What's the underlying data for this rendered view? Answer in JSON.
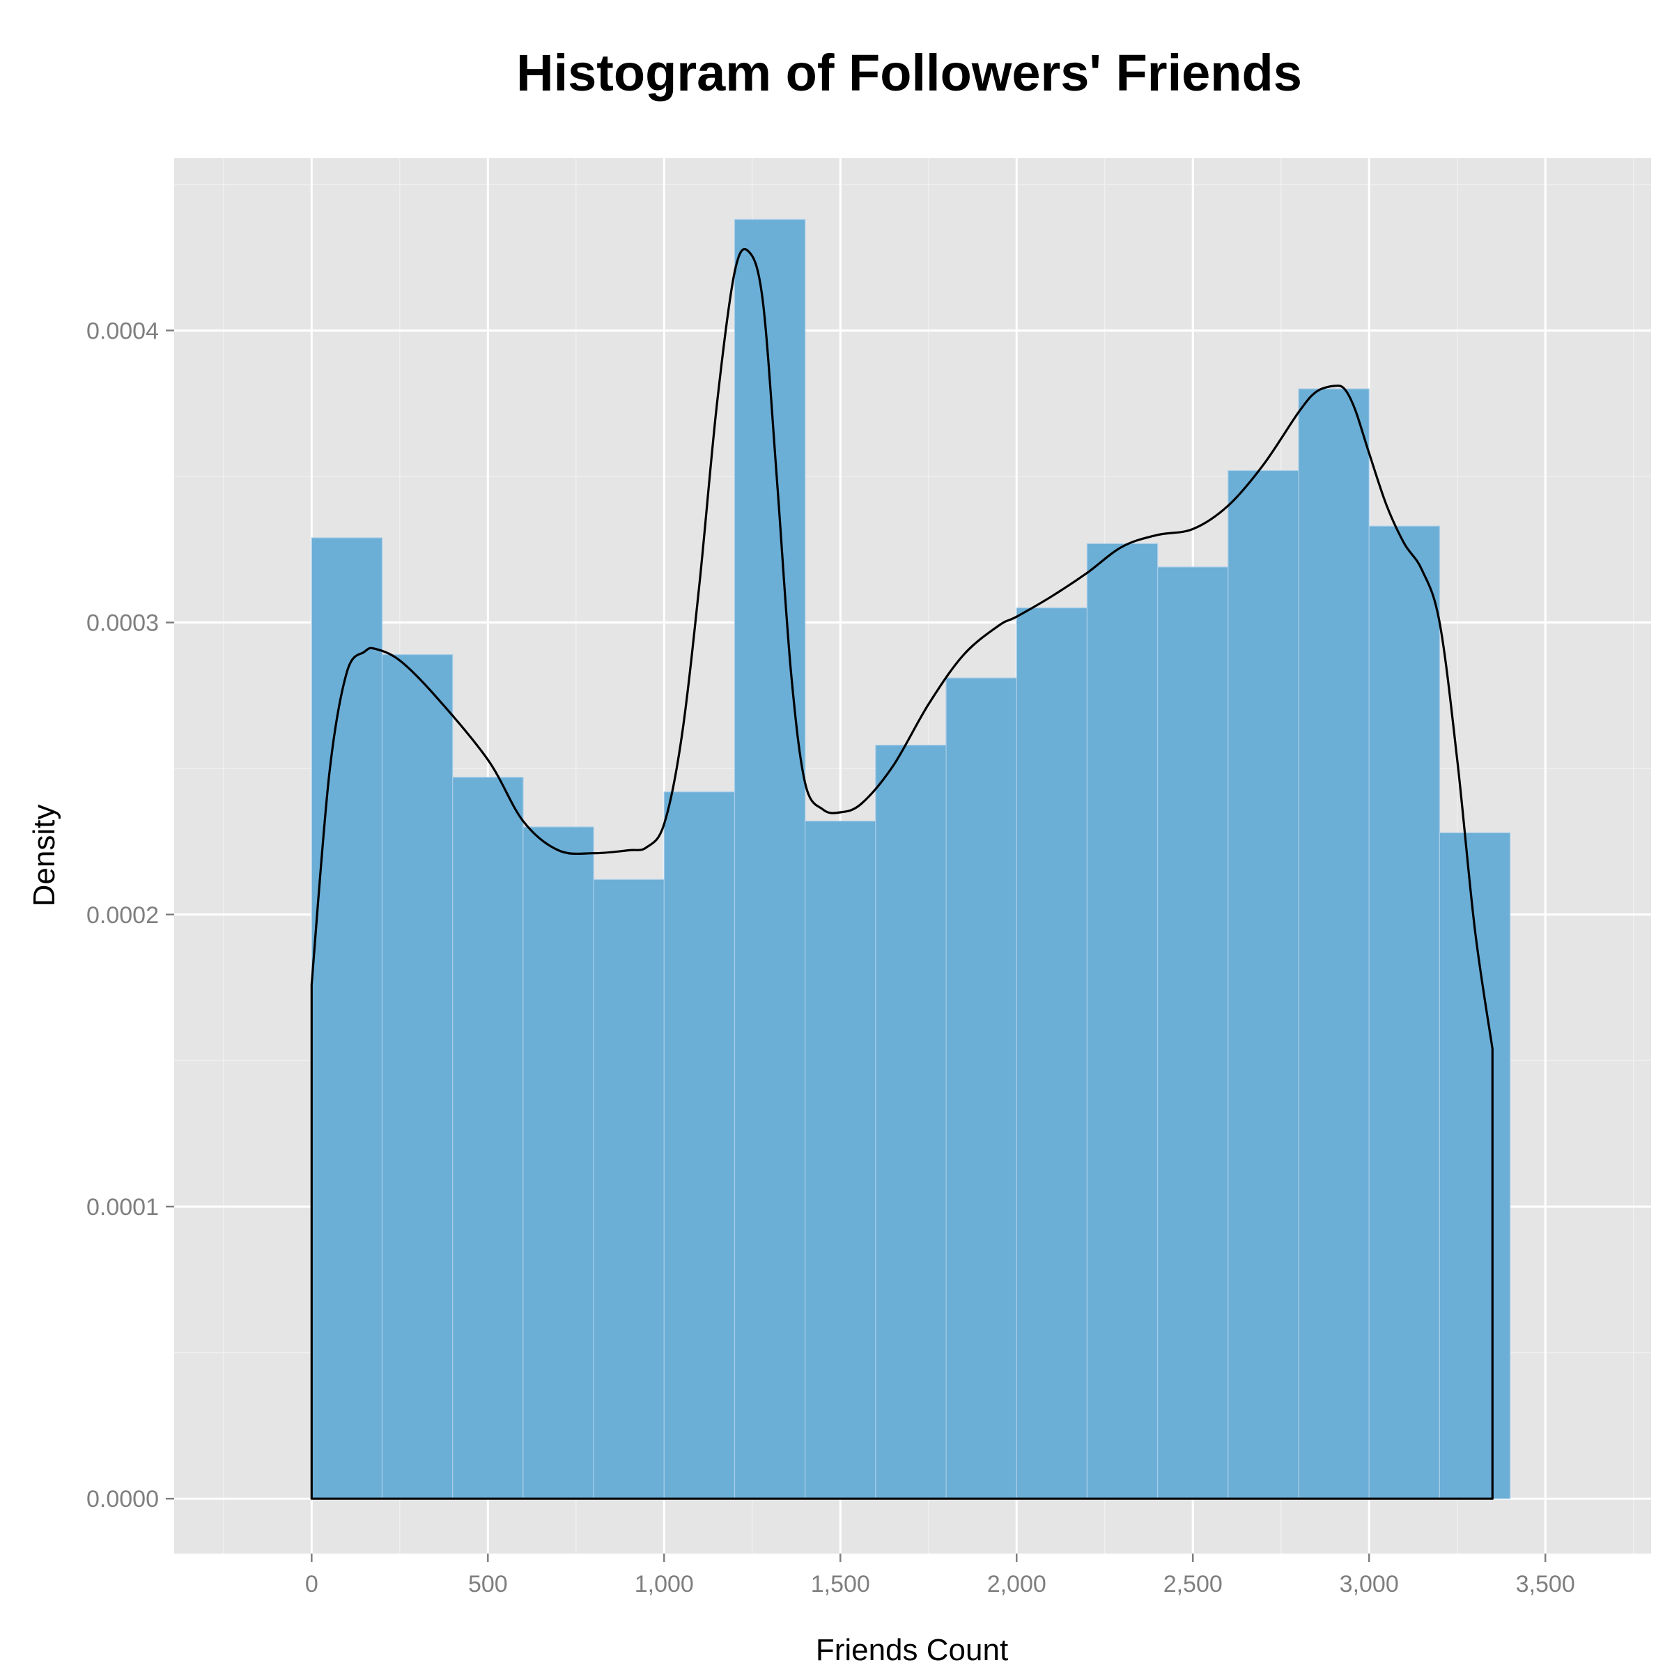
{
  "chart_data": {
    "type": "bar",
    "title": "Histogram of Followers' Friends",
    "xlabel": "Friends Count",
    "ylabel": "Density",
    "xlim": [
      -390,
      3800
    ],
    "ylim": [
      -1.88e-05,
      0.000459
    ],
    "grid": true,
    "x_ticks": [
      0,
      500,
      1000,
      1500,
      2000,
      2500,
      3000,
      3500
    ],
    "x_tick_labels": [
      "0",
      "500",
      "1,000",
      "1,500",
      "2,000",
      "2,500",
      "3,000",
      "3,500"
    ],
    "y_ticks": [
      0,
      0.0001,
      0.0002,
      0.0003,
      0.0004
    ],
    "y_tick_labels": [
      "0.0000",
      "0.0001",
      "0.0002",
      "0.0003",
      "0.0004"
    ],
    "bin_width": 200,
    "bins": [
      {
        "x0": 0,
        "x1": 200,
        "density": 0.000329
      },
      {
        "x0": 200,
        "x1": 400,
        "density": 0.000289
      },
      {
        "x0": 400,
        "x1": 600,
        "density": 0.000247
      },
      {
        "x0": 600,
        "x1": 800,
        "density": 0.00023
      },
      {
        "x0": 800,
        "x1": 1000,
        "density": 0.000212
      },
      {
        "x0": 1000,
        "x1": 1200,
        "density": 0.000242
      },
      {
        "x0": 1200,
        "x1": 1400,
        "density": 0.000438
      },
      {
        "x0": 1400,
        "x1": 1600,
        "density": 0.000232
      },
      {
        "x0": 1600,
        "x1": 1800,
        "density": 0.000258
      },
      {
        "x0": 1800,
        "x1": 2000,
        "density": 0.000281
      },
      {
        "x0": 2000,
        "x1": 2200,
        "density": 0.000305
      },
      {
        "x0": 2200,
        "x1": 2400,
        "density": 0.000327
      },
      {
        "x0": 2400,
        "x1": 2600,
        "density": 0.000319
      },
      {
        "x0": 2600,
        "x1": 2800,
        "density": 0.000352
      },
      {
        "x0": 2800,
        "x1": 3000,
        "density": 0.00038
      },
      {
        "x0": 3000,
        "x1": 3200,
        "density": 0.000333
      },
      {
        "x0": 3200,
        "x1": 3400,
        "density": 0.000228
      }
    ],
    "density_curve": {
      "x": [
        0,
        50,
        100,
        150,
        180,
        250,
        350,
        500,
        600,
        700,
        800,
        900,
        950,
        1000,
        1050,
        1100,
        1150,
        1200,
        1240,
        1280,
        1320,
        1360,
        1400,
        1450,
        1500,
        1560,
        1650,
        1750,
        1850,
        1950,
        2000,
        2100,
        2200,
        2300,
        2400,
        2500,
        2600,
        2700,
        2800,
        2850,
        2900,
        2930,
        2960,
        3000,
        3050,
        3100,
        3150,
        3200,
        3250,
        3300,
        3350
      ],
      "y": [
        0.000176,
        0.000248,
        0.000283,
        0.00029,
        0.000291,
        0.000287,
        0.000275,
        0.000253,
        0.000232,
        0.000222,
        0.000221,
        0.000222,
        0.000223,
        0.000231,
        0.000261,
        0.000313,
        0.000375,
        0.00042,
        0.000427,
        0.00041,
        0.000349,
        0.000283,
        0.000245,
        0.000236,
        0.000235,
        0.000238,
        0.000251,
        0.000272,
        0.000289,
        0.000299,
        0.000302,
        0.000309,
        0.000317,
        0.000326,
        0.00033,
        0.000332,
        0.00034,
        0.000354,
        0.000372,
        0.000379,
        0.000381,
        0.00038,
        0.000373,
        0.000358,
        0.00034,
        0.000327,
        0.000318,
        0.0003,
        0.000253,
        0.000195,
        0.000154
      ]
    },
    "colors": {
      "panel_bg": "#e5e5e5",
      "grid_major": "#ffffff",
      "grid_minor": "#efefef",
      "bar_fill": "#6baed6",
      "bar_stroke": "#a9cde8",
      "curve": "#000000"
    }
  }
}
